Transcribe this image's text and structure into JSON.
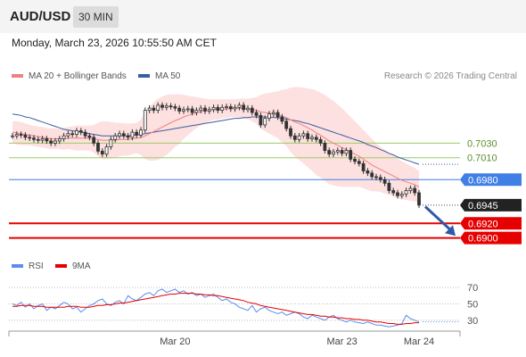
{
  "header": {
    "symbol": "AUD/USD",
    "timeframe": "30 MIN",
    "timestamp": "Monday, March 23, 2026 10:55:50 AM CET"
  },
  "legend": {
    "ma20_bb": "MA 20 + Bollinger Bands",
    "ma50": "MA 50",
    "copyright": "Research © 2026 Trading Central"
  },
  "colors": {
    "ma20": "#f08080",
    "ma50": "#3a5fa0",
    "bands_fill": "#fde0e0",
    "resistance_green": "#9ccc65",
    "pivot_blue": "#3f7fe6",
    "support_red": "#e60000",
    "current_price_bg": "#222222",
    "rsi": "#5b8def",
    "rsi_ma": "#e60000",
    "arrow": "#2f5aa8"
  },
  "chart_data": {
    "type": "candlestick",
    "symbol": "AUD/USD",
    "interval": "30 MIN",
    "x_tick_labels": [
      "Mar 20",
      "Mar 23",
      "Mar 24"
    ],
    "x_tick_bar_index": [
      38,
      77,
      95
    ],
    "y_range": [
      0.688,
      0.711
    ],
    "price_levels": [
      {
        "label": "0.7030",
        "value": 0.703,
        "kind": "resistance"
      },
      {
        "label": "0.7010",
        "value": 0.701,
        "kind": "resistance"
      },
      {
        "label": "0.6980",
        "value": 0.698,
        "kind": "pivot"
      },
      {
        "label": "0.6945",
        "value": 0.6945,
        "kind": "current"
      },
      {
        "label": "0.6920",
        "value": 0.692,
        "kind": "support"
      },
      {
        "label": "0.6900",
        "value": 0.69,
        "kind": "support"
      }
    ],
    "close": [
      0.704,
      0.7042,
      0.7041,
      0.7038,
      0.7037,
      0.7035,
      0.7034,
      0.7036,
      0.7033,
      0.703,
      0.7033,
      0.7036,
      0.704,
      0.7043,
      0.7042,
      0.7047,
      0.7045,
      0.704,
      0.7038,
      0.703,
      0.7019,
      0.7015,
      0.7025,
      0.7035,
      0.704,
      0.7043,
      0.704,
      0.7038,
      0.7045,
      0.7041,
      0.7048,
      0.7075,
      0.7078,
      0.7075,
      0.7082,
      0.7079,
      0.7081,
      0.708,
      0.7078,
      0.7074,
      0.7076,
      0.7077,
      0.7072,
      0.7075,
      0.7078,
      0.7074,
      0.7076,
      0.7079,
      0.7075,
      0.7079,
      0.708,
      0.7077,
      0.7079,
      0.7082,
      0.7076,
      0.7078,
      0.7072,
      0.7068,
      0.7055,
      0.7064,
      0.707,
      0.7072,
      0.7066,
      0.706,
      0.705,
      0.704,
      0.7035,
      0.704,
      0.7043,
      0.7036,
      0.7038,
      0.7035,
      0.703,
      0.702,
      0.7015,
      0.7018,
      0.702,
      0.7016,
      0.702,
      0.7008,
      0.7005,
      0.7002,
      0.6992,
      0.6989,
      0.6984,
      0.6983,
      0.698,
      0.6975,
      0.6965,
      0.6962,
      0.6958,
      0.696,
      0.6965,
      0.6968,
      0.6962,
      0.6945
    ],
    "ma20": [
      0.7045,
      0.7044,
      0.7043,
      0.7042,
      0.7041,
      0.704,
      0.7039,
      0.7038,
      0.7037,
      0.7036,
      0.7036,
      0.7036,
      0.7036,
      0.7037,
      0.7037,
      0.7037,
      0.7037,
      0.7037,
      0.7037,
      0.7036,
      0.7035,
      0.7034,
      0.7034,
      0.7034,
      0.7034,
      0.7035,
      0.7035,
      0.7035,
      0.7036,
      0.7037,
      0.7038,
      0.704,
      0.7043,
      0.7046,
      0.7049,
      0.7052,
      0.7055,
      0.7058,
      0.7061,
      0.7063,
      0.7066,
      0.7068,
      0.707,
      0.7072,
      0.7073,
      0.7074,
      0.7075,
      0.7076,
      0.7076,
      0.7077,
      0.7077,
      0.7078,
      0.7078,
      0.7078,
      0.7077,
      0.7077,
      0.7076,
      0.7075,
      0.7073,
      0.7072,
      0.7071,
      0.707,
      0.7069,
      0.7067,
      0.7065,
      0.7062,
      0.7059,
      0.7057,
      0.7054,
      0.7051,
      0.7048,
      0.7044,
      0.7041,
      0.7037,
      0.7033,
      0.703,
      0.7027,
      0.7024,
      0.7021,
      0.7018,
      0.7015,
      0.7012,
      0.7008,
      0.7004,
      0.7,
      0.6997,
      0.6994,
      0.6991,
      0.6988,
      0.6985,
      0.6982,
      0.6979,
      0.6977,
      0.6975,
      0.6973,
      0.697
    ],
    "bb_upper": [
      0.706,
      0.706,
      0.7059,
      0.7057,
      0.7055,
      0.7054,
      0.7053,
      0.7052,
      0.7051,
      0.705,
      0.705,
      0.705,
      0.7051,
      0.7052,
      0.7053,
      0.7054,
      0.7054,
      0.7054,
      0.7054,
      0.7055,
      0.7058,
      0.706,
      0.706,
      0.7059,
      0.7058,
      0.7058,
      0.7057,
      0.7057,
      0.7057,
      0.7058,
      0.7062,
      0.7072,
      0.708,
      0.7086,
      0.7091,
      0.7094,
      0.7096,
      0.7097,
      0.7097,
      0.7097,
      0.7096,
      0.7095,
      0.7094,
      0.7093,
      0.7092,
      0.7091,
      0.709,
      0.709,
      0.709,
      0.709,
      0.709,
      0.709,
      0.709,
      0.7091,
      0.7091,
      0.7091,
      0.7092,
      0.7093,
      0.7096,
      0.7098,
      0.7099,
      0.71,
      0.7101,
      0.7103,
      0.7104,
      0.7106,
      0.7107,
      0.7107,
      0.7106,
      0.7105,
      0.7104,
      0.7102,
      0.7099,
      0.7096,
      0.7092,
      0.7088,
      0.7083,
      0.7078,
      0.7072,
      0.7066,
      0.706,
      0.7054,
      0.7048,
      0.7042,
      0.7036,
      0.703,
      0.7025,
      0.7021,
      0.7017,
      0.7013,
      0.7009,
      0.7005,
      0.7002,
      0.6999,
      0.6996,
      0.6992
    ],
    "bb_lower": [
      0.703,
      0.7028,
      0.7027,
      0.7027,
      0.7027,
      0.7026,
      0.7025,
      0.7024,
      0.7023,
      0.7022,
      0.7022,
      0.7022,
      0.7021,
      0.7022,
      0.7021,
      0.702,
      0.702,
      0.702,
      0.702,
      0.7017,
      0.7012,
      0.7008,
      0.7008,
      0.7009,
      0.701,
      0.7012,
      0.7013,
      0.7013,
      0.7015,
      0.7016,
      0.7014,
      0.7008,
      0.7006,
      0.7006,
      0.7007,
      0.701,
      0.7014,
      0.7019,
      0.7025,
      0.7029,
      0.7036,
      0.7041,
      0.7046,
      0.7051,
      0.7054,
      0.7057,
      0.706,
      0.7062,
      0.7062,
      0.7064,
      0.7064,
      0.7066,
      0.7066,
      0.7065,
      0.7063,
      0.7063,
      0.706,
      0.7057,
      0.705,
      0.7046,
      0.7043,
      0.704,
      0.7037,
      0.7031,
      0.7026,
      0.7018,
      0.7011,
      0.7007,
      0.7002,
      0.6997,
      0.6992,
      0.6986,
      0.6983,
      0.6978,
      0.6974,
      0.6972,
      0.6971,
      0.697,
      0.697,
      0.697,
      0.697,
      0.697,
      0.6968,
      0.6966,
      0.6964,
      0.6964,
      0.6963,
      0.6961,
      0.6959,
      0.6957,
      0.6955,
      0.6953,
      0.6952,
      0.6951,
      0.695,
      0.6948
    ],
    "ma50": [
      0.707,
      0.7069,
      0.7068,
      0.7066,
      0.7065,
      0.7063,
      0.7061,
      0.7059,
      0.7057,
      0.7055,
      0.7053,
      0.7051,
      0.7049,
      0.7048,
      0.7047,
      0.7046,
      0.7045,
      0.7044,
      0.7043,
      0.7042,
      0.7041,
      0.704,
      0.704,
      0.704,
      0.704,
      0.704,
      0.704,
      0.704,
      0.7041,
      0.7041,
      0.7042,
      0.7043,
      0.7044,
      0.7045,
      0.7046,
      0.7047,
      0.7048,
      0.7049,
      0.705,
      0.7051,
      0.7052,
      0.7053,
      0.7054,
      0.7055,
      0.7056,
      0.7057,
      0.7058,
      0.7059,
      0.706,
      0.7061,
      0.7062,
      0.7063,
      0.7064,
      0.7064,
      0.7065,
      0.7065,
      0.7066,
      0.7066,
      0.7066,
      0.7066,
      0.7066,
      0.7065,
      0.7065,
      0.7064,
      0.7063,
      0.7062,
      0.7061,
      0.706,
      0.7058,
      0.7057,
      0.7055,
      0.7053,
      0.7051,
      0.7049,
      0.7047,
      0.7045,
      0.7043,
      0.7041,
      0.7039,
      0.7037,
      0.7035,
      0.7033,
      0.7031,
      0.7028,
      0.7026,
      0.7024,
      0.7021,
      0.7019,
      0.7016,
      0.7014,
      0.7011,
      0.7009,
      0.7007,
      0.7005,
      0.7003,
      0.7001
    ],
    "rsi_panel": {
      "label": "RSI",
      "ma_label": "9MA",
      "y_ticks": [
        70,
        50,
        30
      ],
      "y_range": [
        20,
        80
      ],
      "rsi": [
        50,
        48,
        52,
        46,
        50,
        44,
        48,
        50,
        42,
        46,
        44,
        48,
        52,
        50,
        44,
        46,
        40,
        44,
        48,
        50,
        54,
        56,
        50,
        48,
        52,
        54,
        50,
        60,
        56,
        54,
        58,
        62,
        64,
        60,
        66,
        68,
        64,
        66,
        68,
        64,
        66,
        62,
        64,
        60,
        62,
        58,
        60,
        62,
        58,
        54,
        56,
        52,
        50,
        46,
        44,
        42,
        48,
        40,
        44,
        46,
        42,
        40,
        38,
        40,
        36,
        38,
        40,
        38,
        34,
        32,
        36,
        34,
        32,
        30,
        34,
        36,
        32,
        30,
        28,
        30,
        28,
        27,
        26,
        28,
        26,
        24,
        24,
        23,
        22,
        23,
        24,
        26,
        36,
        32,
        30,
        28
      ],
      "rsi_ma": [
        47,
        47,
        48,
        48,
        48,
        47,
        47,
        47,
        46,
        46,
        46,
        46,
        46,
        47,
        47,
        47,
        46,
        46,
        46,
        47,
        48,
        48,
        49,
        49,
        50,
        51,
        51,
        52,
        53,
        54,
        55,
        56,
        57,
        58,
        59,
        60,
        61,
        62,
        62,
        63,
        63,
        63,
        63,
        62,
        62,
        61,
        61,
        60,
        60,
        59,
        58,
        57,
        56,
        55,
        54,
        52,
        51,
        50,
        48,
        47,
        46,
        45,
        44,
        43,
        42,
        41,
        40,
        39,
        38,
        37,
        37,
        36,
        35,
        35,
        34,
        34,
        33,
        33,
        32,
        32,
        31,
        31,
        30,
        30,
        29,
        28,
        28,
        27,
        26,
        26,
        25,
        25,
        26,
        26,
        27,
        27
      ]
    }
  }
}
